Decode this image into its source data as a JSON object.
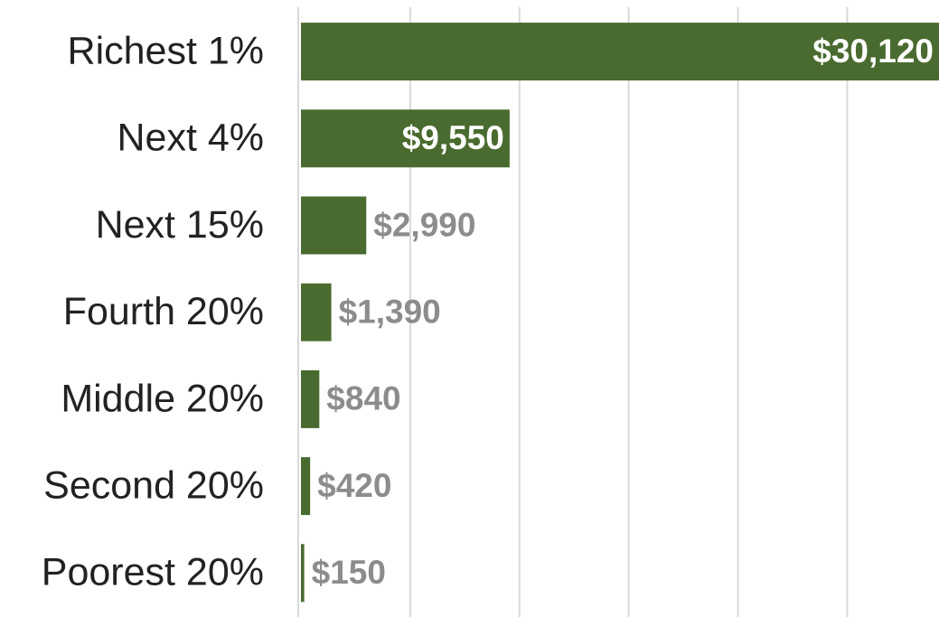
{
  "chart_data": {
    "type": "bar",
    "orientation": "horizontal",
    "categories": [
      "Richest 1%",
      "Next 4%",
      "Next 15%",
      "Fourth 20%",
      "Middle 20%",
      "Second 20%",
      "Poorest 20%"
    ],
    "values": [
      30120,
      9550,
      2990,
      1390,
      840,
      420,
      150
    ],
    "value_labels": [
      "$30,120",
      "$9,550",
      "$2,990",
      "$1,390",
      "$840",
      "$420",
      "$150"
    ],
    "color": "#4a6b2f",
    "xlim": [
      0,
      29200
    ],
    "xticks": [
      0,
      5000,
      10000,
      15000,
      20000,
      25000
    ],
    "grid": true
  }
}
